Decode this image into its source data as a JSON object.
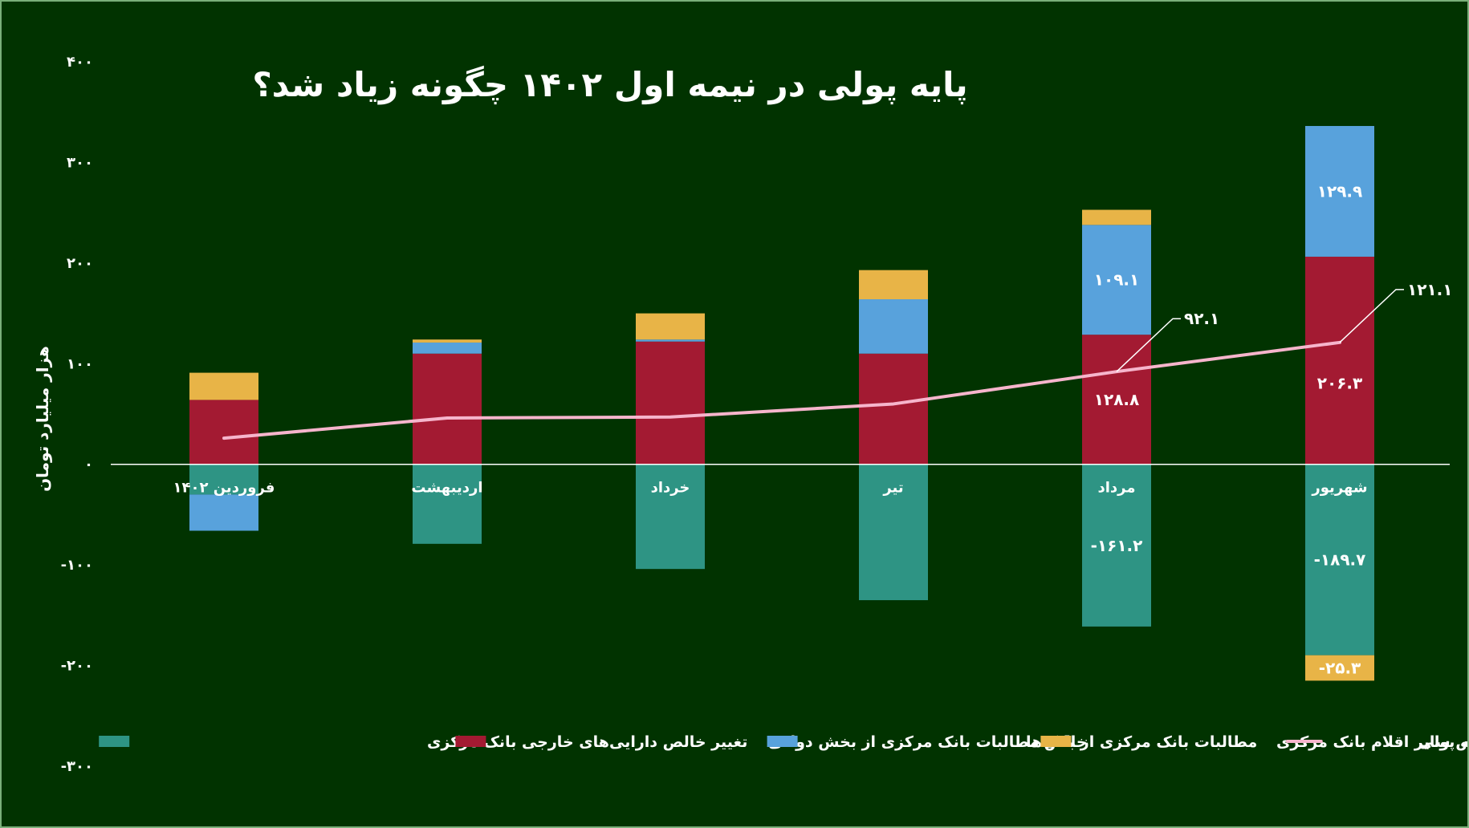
{
  "chart_data": {
    "type": "bar",
    "stacked": true,
    "title": "پایه پولی در نیمه اول ۱۴۰۲ چگونه زیاد شد؟",
    "ylabel": "هزار میلیارد تومان",
    "xlabel": "",
    "ylim": [
      -300,
      400
    ],
    "yticks": [
      {
        "value": 400,
        "label": "۴۰۰"
      },
      {
        "value": 300,
        "label": "۳۰۰"
      },
      {
        "value": 200,
        "label": "۲۰۰"
      },
      {
        "value": 100,
        "label": "۱۰۰"
      },
      {
        "value": 0,
        "label": "۰"
      },
      {
        "value": -100,
        "label": "-۱۰۰"
      },
      {
        "value": -200,
        "label": "-۲۰۰"
      },
      {
        "value": -300,
        "label": "-۳۰۰"
      }
    ],
    "categories": [
      "فروردین ۱۴۰۲",
      "اردیبهشت",
      "خرداد",
      "تیر",
      "مرداد",
      "شهریور"
    ],
    "series": [
      {
        "name": "تغییر خالص دارایی‌های خارجی بانک مرکزی",
        "color": "#2e9484",
        "values": [
          -30,
          -79,
          -104,
          -135,
          -161.2,
          -189.7
        ]
      },
      {
        "name": "خالص مطالبات بانک مرکزی از بخش دولتی",
        "color": "#a31a32",
        "values": [
          64,
          110,
          122,
          110,
          128.8,
          206.3
        ]
      },
      {
        "name": "مطالبات بانک مرکزی از بانک‌ها",
        "color": "#58a2dc",
        "values": [
          -36,
          11,
          2,
          54,
          109.1,
          129.9
        ]
      },
      {
        "name": "خالص سایر اقلام بانک مرکزی",
        "color": "#e8b447",
        "values": [
          27,
          3,
          26,
          29,
          15,
          -25.3
        ]
      },
      {
        "name": "کل پایه پولی",
        "type": "line",
        "color": "#f6b5cc",
        "values": [
          26,
          46,
          47,
          60,
          92.1,
          121.1
        ]
      }
    ],
    "data_labels": [
      {
        "series": 1,
        "index": 4,
        "text": "۱۲۸.۸"
      },
      {
        "series": 2,
        "index": 4,
        "text": "۱۰۹.۱"
      },
      {
        "series": 0,
        "index": 4,
        "text": "-۱۶۱.۲"
      },
      {
        "series": 1,
        "index": 5,
        "text": "۲۰۶.۳"
      },
      {
        "series": 2,
        "index": 5,
        "text": "۱۲۹.۹"
      },
      {
        "series": 0,
        "index": 5,
        "text": "-۱۸۹.۷"
      },
      {
        "series": 3,
        "index": 5,
        "text": "-۲۵.۳"
      },
      {
        "series": 4,
        "index": 4,
        "text": "۹۲.۱"
      },
      {
        "series": 4,
        "index": 5,
        "text": "۱۲۱.۱"
      }
    ],
    "legend_position": "bottom",
    "grid": false
  }
}
